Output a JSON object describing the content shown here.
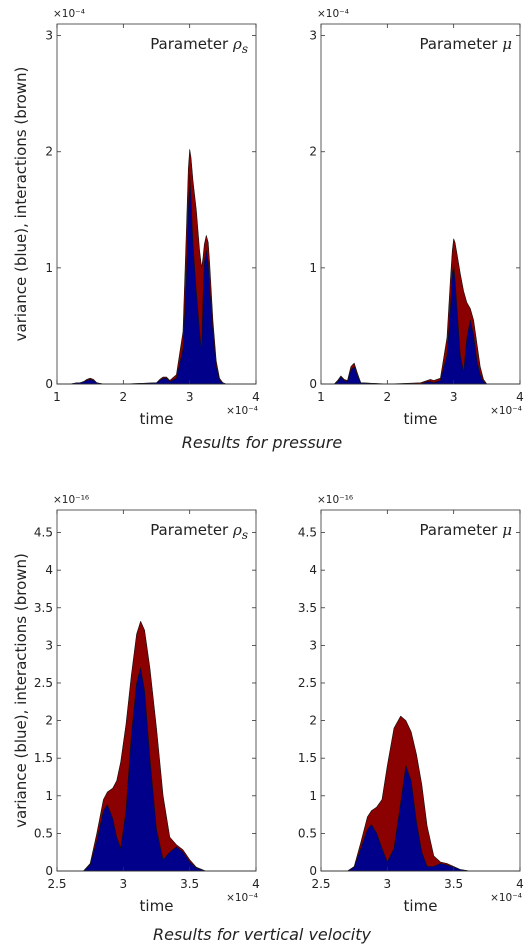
{
  "shared": {
    "series_colors": {
      "variance": "#00008b",
      "interactions": "#8b0000"
    },
    "x_exponent": "×10⁻⁴"
  },
  "captions": {
    "pressure": "Results for pressure",
    "velocity": "Results for vertical velocity"
  },
  "chart_data": [
    {
      "type": "area",
      "group": "pressure",
      "title": "Parameter ρs",
      "title_prefix": "Parameter",
      "title_symbol": "ρ",
      "title_sub": "s",
      "xlabel": "time",
      "ylabel": "variance (blue), interactions (brown)",
      "y_exponent": "×10⁻⁴",
      "xlim": [
        1,
        4
      ],
      "ylim": [
        0,
        3.1
      ],
      "xticks": [
        1,
        2,
        3,
        4
      ],
      "xtick_labels": [
        "1",
        "2",
        "3",
        "4"
      ],
      "yticks": [
        0,
        1,
        2,
        3
      ],
      "ytick_labels": [
        "0",
        "1",
        "2",
        "3"
      ],
      "series": [
        {
          "name": "variance",
          "x": [
            1.0,
            1.2,
            1.3,
            1.35,
            1.4,
            1.45,
            1.5,
            1.55,
            1.6,
            1.7,
            2.0,
            2.5,
            2.55,
            2.6,
            2.65,
            2.7,
            2.8,
            2.9,
            2.95,
            2.98,
            3.0,
            3.02,
            3.05,
            3.1,
            3.15,
            3.18,
            3.2,
            3.22,
            3.25,
            3.28,
            3.3,
            3.35,
            3.4,
            3.45,
            3.5,
            3.55,
            4.0
          ],
          "y": [
            0,
            0,
            0.01,
            0.01,
            0.02,
            0.03,
            0.04,
            0.03,
            0.01,
            0,
            0,
            0.01,
            0.03,
            0.05,
            0.05,
            0.02,
            0.05,
            0.3,
            0.9,
            1.5,
            1.8,
            1.6,
            1.2,
            0.8,
            0.45,
            0.28,
            0.7,
            1.05,
            1.15,
            1.05,
            0.85,
            0.45,
            0.15,
            0.03,
            0.01,
            0,
            0
          ]
        },
        {
          "name": "interactions",
          "x": [
            1.0,
            1.2,
            1.3,
            1.35,
            1.4,
            1.45,
            1.5,
            1.55,
            1.6,
            1.7,
            2.0,
            2.5,
            2.55,
            2.6,
            2.65,
            2.7,
            2.8,
            2.9,
            2.95,
            2.98,
            3.0,
            3.02,
            3.05,
            3.1,
            3.15,
            3.18,
            3.2,
            3.22,
            3.25,
            3.28,
            3.3,
            3.35,
            3.4,
            3.45,
            3.5,
            3.55,
            4.0
          ],
          "y": [
            0,
            0,
            0.01,
            0.01,
            0.02,
            0.04,
            0.05,
            0.04,
            0.01,
            0,
            0,
            0.01,
            0.04,
            0.06,
            0.06,
            0.03,
            0.08,
            0.45,
            1.3,
            1.85,
            2.02,
            1.95,
            1.75,
            1.5,
            1.15,
            1.0,
            1.08,
            1.2,
            1.28,
            1.22,
            1.05,
            0.55,
            0.2,
            0.05,
            0.01,
            0,
            0
          ]
        }
      ]
    },
    {
      "type": "area",
      "group": "pressure",
      "title": "Parameter μ",
      "title_prefix": "Parameter",
      "title_symbol": "μ",
      "title_sub": "",
      "xlabel": "time",
      "ylabel": "",
      "y_exponent": "×10⁻⁴",
      "xlim": [
        1,
        4
      ],
      "ylim": [
        0,
        3.1
      ],
      "xticks": [
        1,
        2,
        3,
        4
      ],
      "xtick_labels": [
        "1",
        "2",
        "3",
        "4"
      ],
      "yticks": [
        0,
        1,
        2,
        3
      ],
      "ytick_labels": [
        "0",
        "1",
        "2",
        "3"
      ],
      "series": [
        {
          "name": "variance",
          "x": [
            1.0,
            1.2,
            1.25,
            1.3,
            1.35,
            1.4,
            1.45,
            1.5,
            1.55,
            1.6,
            2.0,
            2.5,
            2.6,
            2.65,
            2.7,
            2.8,
            2.9,
            2.95,
            2.98,
            3.0,
            3.02,
            3.05,
            3.1,
            3.15,
            3.2,
            3.25,
            3.3,
            3.35,
            3.4,
            3.45,
            3.5,
            4.0
          ],
          "y": [
            0,
            0,
            0.02,
            0.06,
            0.03,
            0.02,
            0.12,
            0.15,
            0.07,
            0.01,
            0,
            0,
            0.02,
            0.02,
            0.01,
            0.03,
            0.25,
            0.65,
            0.95,
            1.02,
            0.9,
            0.65,
            0.25,
            0.1,
            0.4,
            0.55,
            0.42,
            0.2,
            0.08,
            0.02,
            0,
            0
          ]
        },
        {
          "name": "interactions",
          "x": [
            1.0,
            1.2,
            1.25,
            1.3,
            1.35,
            1.4,
            1.45,
            1.5,
            1.55,
            1.6,
            2.0,
            2.5,
            2.6,
            2.65,
            2.7,
            2.8,
            2.9,
            2.95,
            2.98,
            3.0,
            3.02,
            3.05,
            3.1,
            3.15,
            3.2,
            3.25,
            3.3,
            3.35,
            3.4,
            3.45,
            3.5,
            4.0
          ],
          "y": [
            0,
            0,
            0.03,
            0.07,
            0.04,
            0.03,
            0.15,
            0.18,
            0.09,
            0.01,
            0,
            0.01,
            0.03,
            0.04,
            0.03,
            0.05,
            0.4,
            0.9,
            1.15,
            1.25,
            1.22,
            1.12,
            0.95,
            0.8,
            0.7,
            0.65,
            0.55,
            0.35,
            0.15,
            0.04,
            0,
            0
          ]
        }
      ]
    },
    {
      "type": "area",
      "group": "velocity",
      "title": "Parameter ρs",
      "title_prefix": "Parameter",
      "title_symbol": "ρ",
      "title_sub": "s",
      "xlabel": "time",
      "ylabel": "variance (blue), interactions (brown)",
      "y_exponent": "×10⁻¹⁶",
      "xlim": [
        2.5,
        4
      ],
      "ylim": [
        0,
        4.8
      ],
      "xticks": [
        2.5,
        3,
        3.5,
        4
      ],
      "xtick_labels": [
        "2.5",
        "3",
        "3.5",
        "4"
      ],
      "yticks": [
        0,
        0.5,
        1,
        1.5,
        2,
        2.5,
        3,
        3.5,
        4,
        4.5
      ],
      "ytick_labels": [
        "0",
        "0.5",
        "1",
        "1.5",
        "2",
        "2.5",
        "3",
        "3.5",
        "4",
        "4.5"
      ],
      "series": [
        {
          "name": "variance",
          "x": [
            2.5,
            2.7,
            2.75,
            2.8,
            2.85,
            2.88,
            2.92,
            2.95,
            2.98,
            3.02,
            3.06,
            3.1,
            3.13,
            3.16,
            3.2,
            3.25,
            3.3,
            3.35,
            3.4,
            3.45,
            3.5,
            3.55,
            3.62,
            4.0
          ],
          "y": [
            0,
            0,
            0.08,
            0.4,
            0.8,
            0.88,
            0.7,
            0.45,
            0.3,
            0.8,
            1.8,
            2.5,
            2.7,
            2.4,
            1.5,
            0.55,
            0.15,
            0.25,
            0.32,
            0.25,
            0.12,
            0.04,
            0,
            0
          ]
        },
        {
          "name": "interactions",
          "x": [
            2.5,
            2.7,
            2.75,
            2.8,
            2.85,
            2.88,
            2.92,
            2.95,
            2.98,
            3.02,
            3.06,
            3.1,
            3.13,
            3.16,
            3.2,
            3.25,
            3.3,
            3.35,
            3.4,
            3.45,
            3.5,
            3.55,
            3.62,
            4.0
          ],
          "y": [
            0,
            0,
            0.1,
            0.5,
            0.95,
            1.05,
            1.1,
            1.2,
            1.45,
            1.95,
            2.6,
            3.15,
            3.32,
            3.2,
            2.7,
            1.9,
            1.0,
            0.45,
            0.35,
            0.28,
            0.15,
            0.05,
            0,
            0
          ]
        }
      ]
    },
    {
      "type": "area",
      "group": "velocity",
      "title": "Parameter μ",
      "title_prefix": "Parameter",
      "title_symbol": "μ",
      "title_sub": "",
      "xlabel": "time",
      "ylabel": "",
      "y_exponent": "×10⁻¹⁶",
      "xlim": [
        2.5,
        4
      ],
      "ylim": [
        0,
        4.8
      ],
      "xticks": [
        2.5,
        3,
        3.5,
        4
      ],
      "xtick_labels": [
        "2.5",
        "3",
        "3.5",
        "4"
      ],
      "yticks": [
        0,
        0.5,
        1,
        1.5,
        2,
        2.5,
        3,
        3.5,
        4,
        4.5
      ],
      "ytick_labels": [
        "0",
        "0.5",
        "1",
        "1.5",
        "2",
        "2.5",
        "3",
        "3.5",
        "4",
        "4.5"
      ],
      "series": [
        {
          "name": "variance",
          "x": [
            2.5,
            2.7,
            2.75,
            2.8,
            2.85,
            2.88,
            2.92,
            2.96,
            3.0,
            3.05,
            3.1,
            3.14,
            3.18,
            3.22,
            3.26,
            3.3,
            3.35,
            3.4,
            3.45,
            3.5,
            3.55,
            3.62,
            4.0
          ],
          "y": [
            0,
            0,
            0.05,
            0.3,
            0.55,
            0.62,
            0.5,
            0.3,
            0.12,
            0.3,
            0.9,
            1.4,
            1.2,
            0.65,
            0.25,
            0.06,
            0.06,
            0.1,
            0.08,
            0.05,
            0.02,
            0,
            0
          ]
        },
        {
          "name": "interactions",
          "x": [
            2.5,
            2.7,
            2.75,
            2.8,
            2.85,
            2.88,
            2.92,
            2.96,
            3.0,
            3.05,
            3.1,
            3.14,
            3.18,
            3.22,
            3.26,
            3.3,
            3.35,
            3.4,
            3.45,
            3.5,
            3.55,
            3.62,
            4.0
          ],
          "y": [
            0,
            0,
            0.06,
            0.38,
            0.72,
            0.8,
            0.85,
            0.95,
            1.4,
            1.9,
            2.06,
            2.0,
            1.85,
            1.55,
            1.15,
            0.6,
            0.2,
            0.12,
            0.1,
            0.06,
            0.02,
            0,
            0
          ]
        }
      ]
    }
  ]
}
